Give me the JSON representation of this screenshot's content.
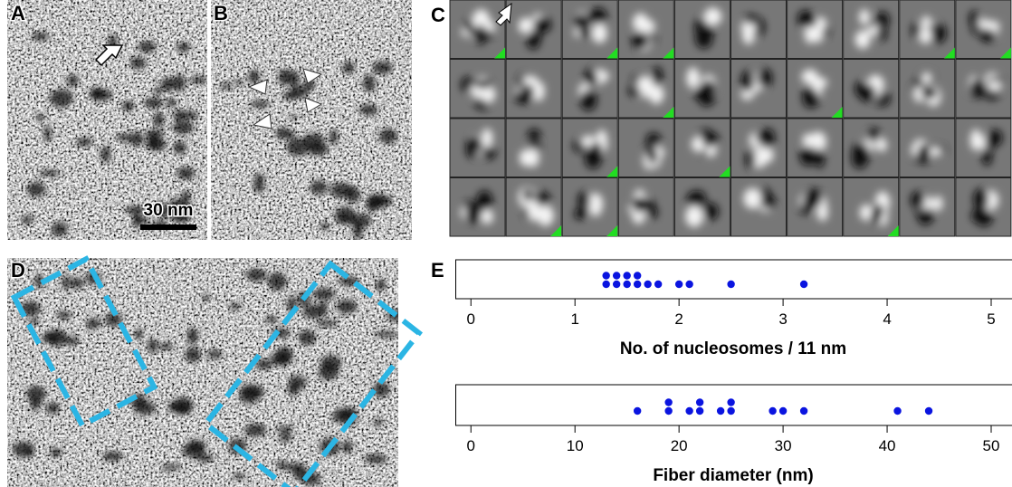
{
  "panel_labels": [
    "A",
    "B",
    "C",
    "D",
    "E"
  ],
  "scale_bar": "30 nm",
  "chart_data": [
    {
      "type": "dot",
      "xlabel": "No. of nucleosomes / 11 nm",
      "color": "#0a14e0",
      "xlim": [
        -0.15,
        5.2
      ],
      "xticks": [
        0,
        1,
        2,
        3,
        4,
        5
      ],
      "values": [
        1.3,
        1.3,
        1.4,
        1.4,
        1.5,
        1.5,
        1.6,
        1.6,
        1.7,
        1.8,
        2.0,
        2.1,
        2.5,
        3.2
      ]
    },
    {
      "type": "dot",
      "xlabel": "Fiber diameter (nm)",
      "color": "#0a14e0",
      "xlim": [
        -1.5,
        52
      ],
      "xticks": [
        0,
        10,
        20,
        30,
        40,
        50
      ],
      "values": [
        16,
        19,
        19,
        21,
        22,
        22,
        24,
        25,
        25,
        29,
        30,
        32,
        41,
        44
      ]
    }
  ]
}
